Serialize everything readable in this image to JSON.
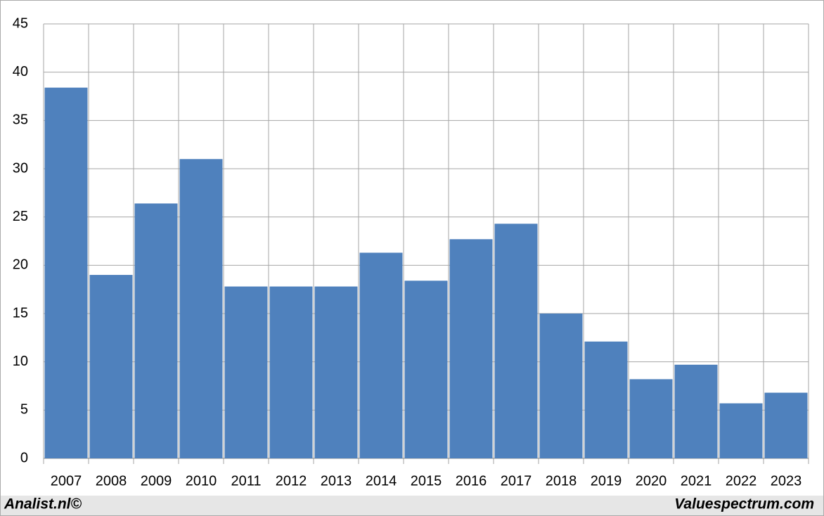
{
  "chart_data": {
    "type": "bar",
    "categories": [
      "2007",
      "2008",
      "2009",
      "2010",
      "2011",
      "2012",
      "2013",
      "2014",
      "2015",
      "2016",
      "2017",
      "2018",
      "2019",
      "2020",
      "2021",
      "2022",
      "2023"
    ],
    "values": [
      38.4,
      19.0,
      26.4,
      31.0,
      17.8,
      17.8,
      17.8,
      21.3,
      18.4,
      22.7,
      24.3,
      15.0,
      12.1,
      8.2,
      9.7,
      5.7,
      6.8
    ],
    "color": "#4f81bd",
    "ylim": [
      0,
      45
    ],
    "yticks": [
      0,
      5,
      10,
      15,
      20,
      25,
      30,
      35,
      40,
      45
    ],
    "grid": true,
    "footer_left": "Analist.nl©",
    "footer_right": "Valuespectrum.com"
  }
}
